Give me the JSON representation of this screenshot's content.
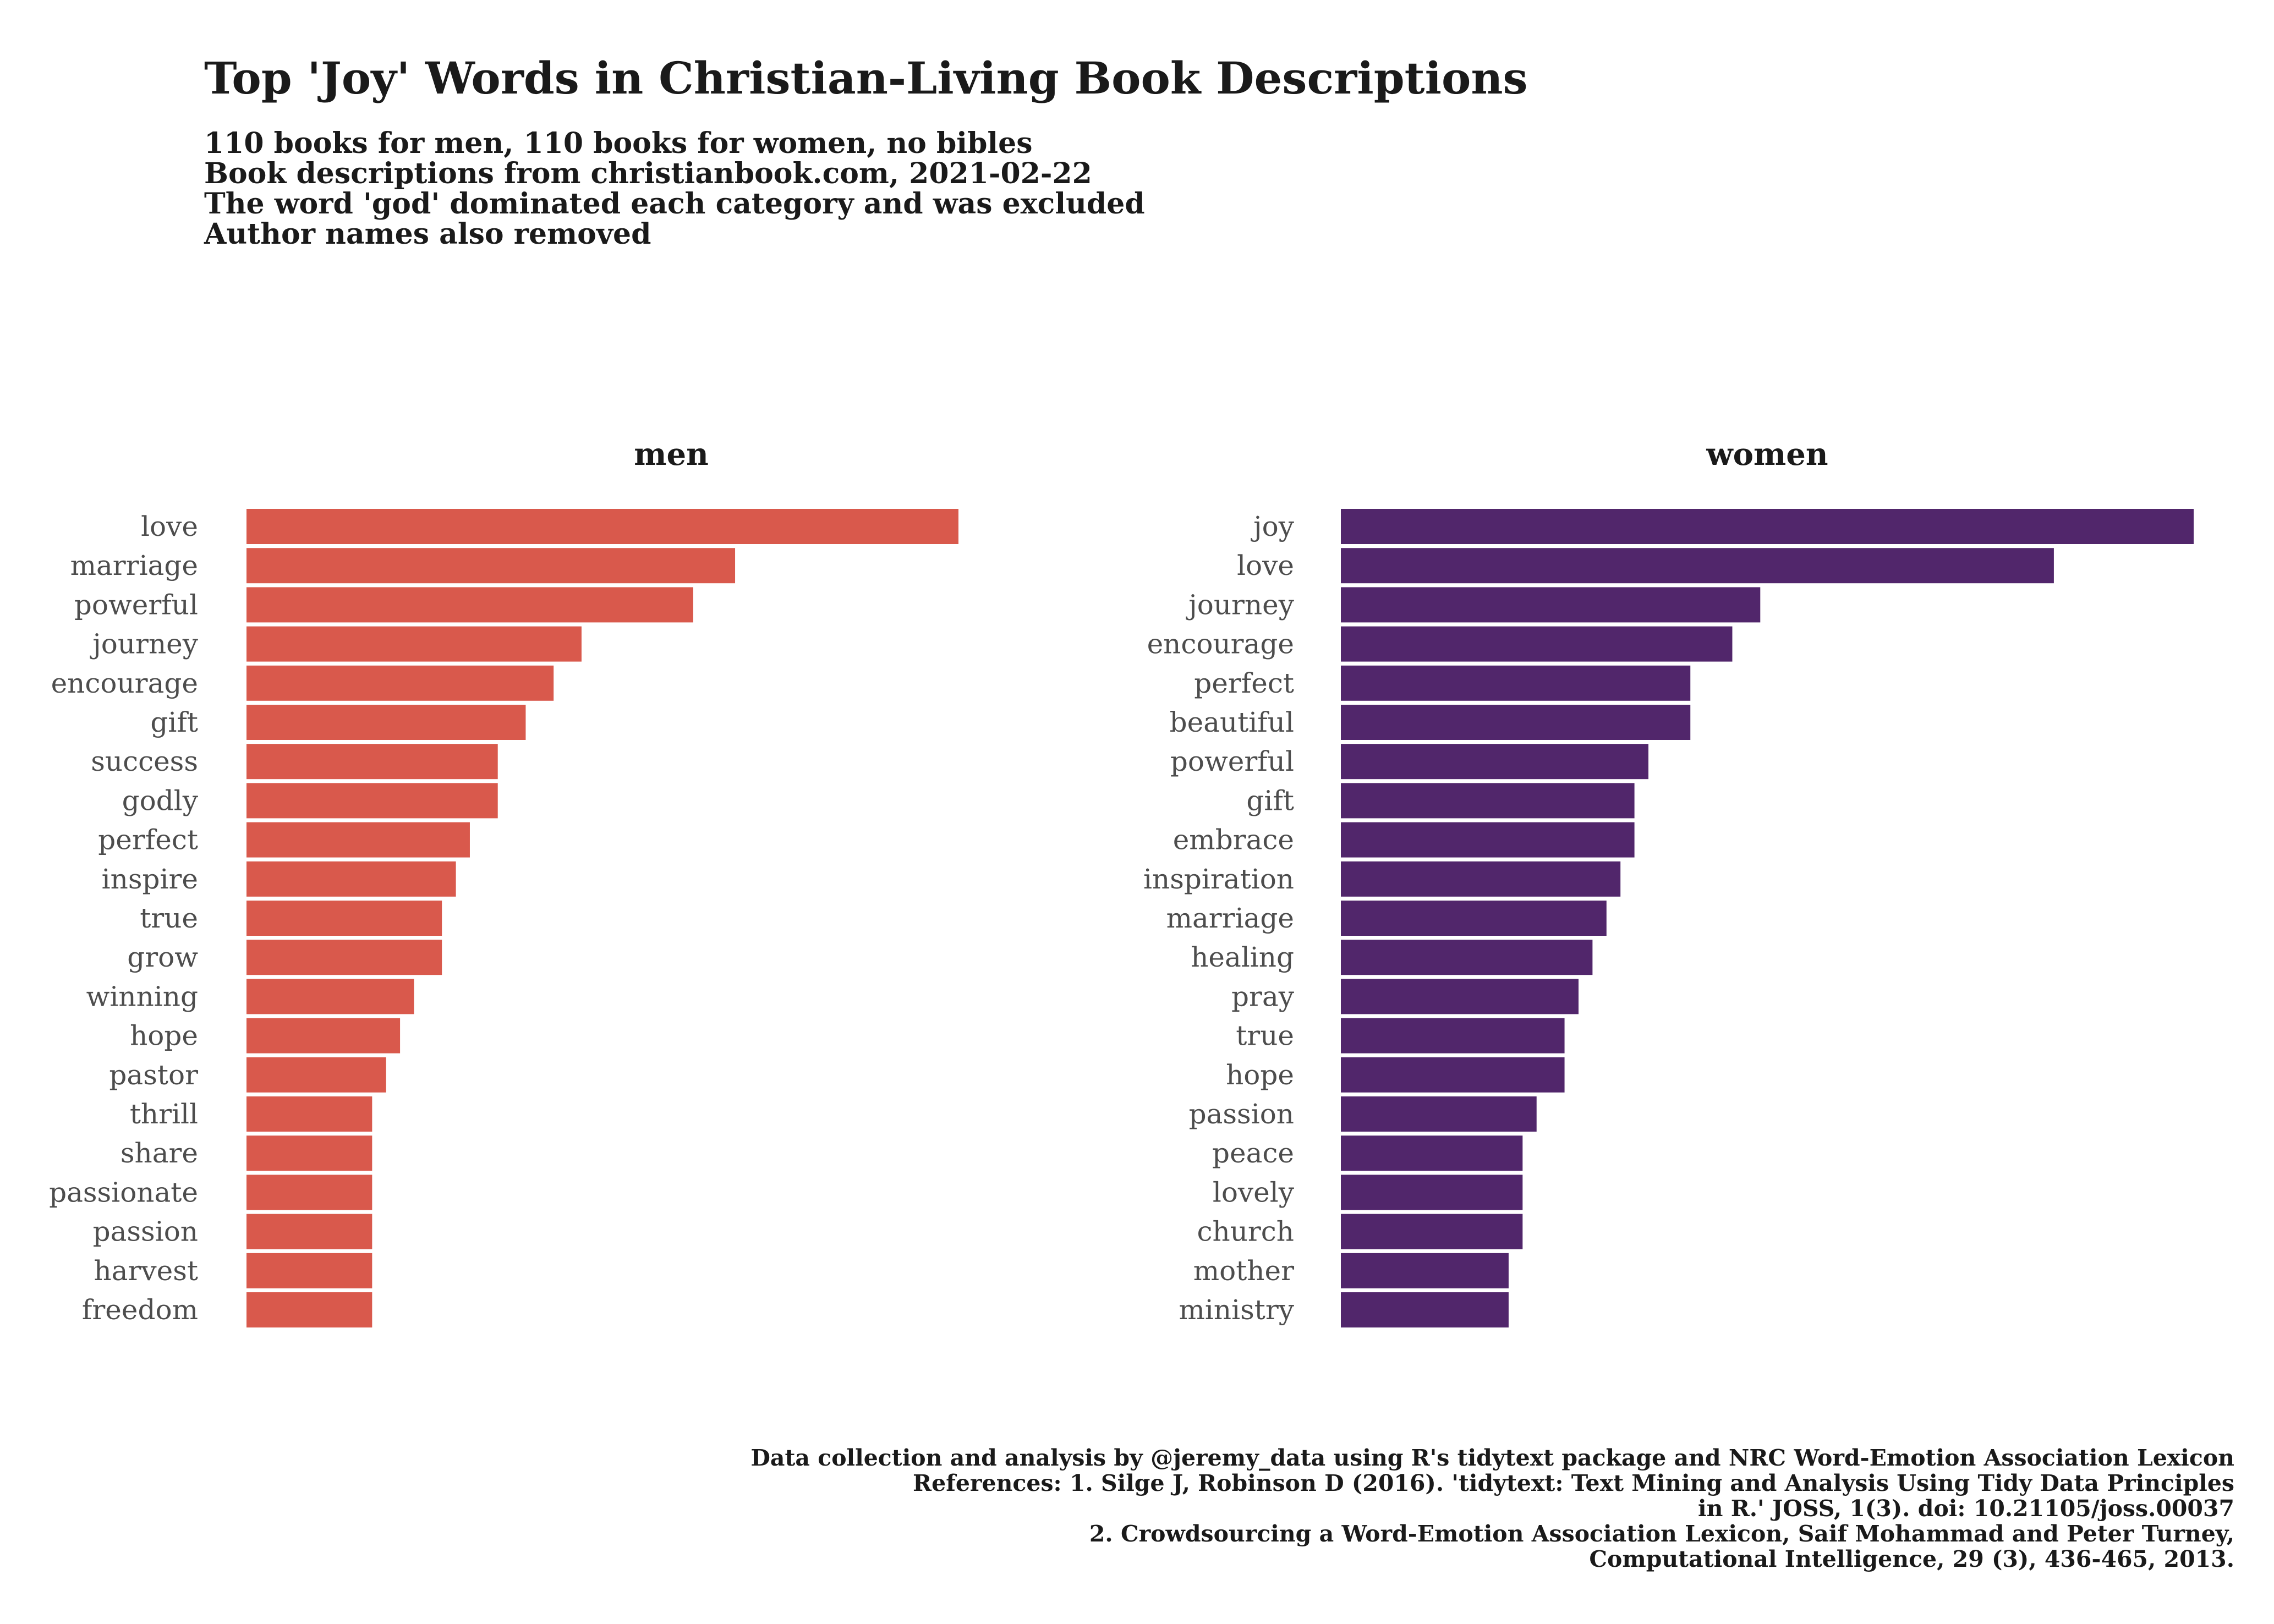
{
  "title": "Top 'Joy' Words in Christian-Living Book Descriptions",
  "subtitle_lines": [
    "110 books for men, 110 books for women, no bibles",
    "Book descriptions from christianbook.com, 2021-02-22",
    "The word 'god' dominated each category and was excluded",
    "Author names also removed"
  ],
  "caption_lines": [
    "Data collection and analysis by @jeremy_data using R's tidytext package and NRC Word-Emotion Association Lexicon",
    "References: 1. Silge J, Robinson D (2016). 'tidytext: Text Mining and Analysis Using Tidy Data Principles",
    "in R.' JOSS, 1(3). doi: 10.21105/joss.00037",
    "2. Crowdsourcing a Word-Emotion Association Lexicon, Saif Mohammad and Peter Turney,",
    "Computational Intelligence, 29 (3), 436-465, 2013."
  ],
  "chart_data": [
    {
      "type": "bar",
      "orientation": "horizontal",
      "title": "men",
      "color": "#d9594c",
      "categories": [
        "love",
        "marriage",
        "powerful",
        "journey",
        "encourage",
        "gift",
        "success",
        "godly",
        "perfect",
        "inspire",
        "true",
        "grow",
        "winning",
        "hope",
        "pastor",
        "thrill",
        "share",
        "passionate",
        "passion",
        "harvest",
        "freedom"
      ],
      "values": [
        51,
        35,
        32,
        24,
        22,
        20,
        18,
        18,
        16,
        15,
        14,
        14,
        12,
        11,
        10,
        9,
        9,
        9,
        9,
        9,
        9
      ],
      "xlim": [
        0,
        51
      ]
    },
    {
      "type": "bar",
      "orientation": "horizontal",
      "title": "women",
      "color": "#51266b",
      "categories": [
        "joy",
        "love",
        "journey",
        "encourage",
        "perfect",
        "beautiful",
        "powerful",
        "gift",
        "embrace",
        "inspiration",
        "marriage",
        "healing",
        "pray",
        "true",
        "hope",
        "passion",
        "peace",
        "lovely",
        "church",
        "mother",
        "ministry"
      ],
      "values": [
        61,
        51,
        30,
        28,
        25,
        25,
        22,
        21,
        21,
        20,
        19,
        18,
        17,
        16,
        16,
        14,
        13,
        13,
        13,
        12,
        12
      ],
      "xlim": [
        0,
        61
      ]
    }
  ]
}
